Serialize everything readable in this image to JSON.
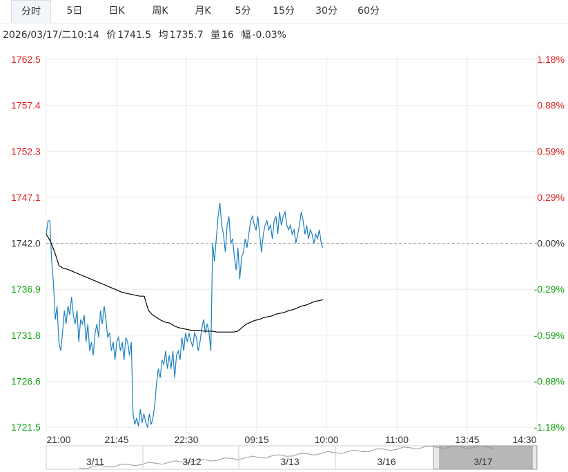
{
  "tabs": [
    {
      "label": "分时",
      "active": true
    },
    {
      "label": "5日",
      "active": false
    },
    {
      "label": "日K",
      "active": false
    },
    {
      "label": "周K",
      "active": false
    },
    {
      "label": "月K",
      "active": false
    },
    {
      "label": "5分",
      "active": false
    },
    {
      "label": "15分",
      "active": false
    },
    {
      "label": "30分",
      "active": false
    },
    {
      "label": "60分",
      "active": false
    }
  ],
  "info": {
    "datetime": "2026/03/17/二10:14",
    "price_label": "价",
    "price": "1741.5",
    "avg_label": "均",
    "avg": "1735.7",
    "vol_label": "量",
    "vol": "16",
    "chg_label": "幅",
    "chg": "-0.03%"
  },
  "colors": {
    "up": "#e02020",
    "down": "#14a014",
    "price_line": "#1a7fbf",
    "avg_line": "#000000",
    "grid": "#e8e8e8"
  },
  "chart_data": {
    "type": "line",
    "prev_close": 1742.0,
    "ylim": [
      1721.5,
      1762.5
    ],
    "y_ticks": [
      "1762.5",
      "1757.4",
      "1752.3",
      "1747.1",
      "1742.0",
      "1736.9",
      "1731.8",
      "1726.6",
      "1721.5"
    ],
    "pct_ticks": [
      "1.18%",
      "0.88%",
      "0.59%",
      "0.29%",
      "0.00%",
      "-0.29%",
      "-0.59%",
      "-0.88%",
      "-1.18%"
    ],
    "x_ticks": [
      "21:00",
      "21:45",
      "22:30",
      "09:15",
      "10:00",
      "11:00",
      "13:45",
      "14:30"
    ],
    "series": [
      {
        "name": "价",
        "values": [
          1743.0,
          1744.5,
          1744.5,
          1740.0,
          1737.5,
          1733.5,
          1735.0,
          1731.0,
          1730.0,
          1732.0,
          1734.5,
          1733.0,
          1735.0,
          1734.0,
          1736.0,
          1734.0,
          1733.0,
          1734.5,
          1731.0,
          1733.5,
          1733.0,
          1734.0,
          1731.0,
          1733.0,
          1730.0,
          1731.0,
          1729.5,
          1732.0,
          1733.0,
          1731.5,
          1734.5,
          1733.0,
          1735.0,
          1733.5,
          1731.5,
          1732.0,
          1730.0,
          1731.0,
          1729.0,
          1731.0,
          1731.5,
          1730.0,
          1731.0,
          1729.0,
          1731.5,
          1731.0,
          1729.5,
          1731.0,
          1723.0,
          1721.8,
          1722.5,
          1721.6,
          1723.5,
          1722.0,
          1723.0,
          1722.0,
          1721.5,
          1723.0,
          1721.8,
          1722.5,
          1724.0,
          1726.5,
          1728.0,
          1727.0,
          1729.0,
          1728.5,
          1730.0,
          1728.0,
          1729.5,
          1728.0,
          1730.0,
          1727.0,
          1729.5,
          1730.0,
          1729.0,
          1731.5,
          1730.0,
          1732.0,
          1731.0,
          1732.0,
          1731.0,
          1730.5,
          1732.0,
          1731.5,
          1730.0,
          1731.0,
          1732.5,
          1733.5,
          1732.0,
          1733.0,
          1732.0,
          1730.0,
          1742.0,
          1740.0,
          1742.5,
          1745.0,
          1746.5,
          1744.0,
          1743.0,
          1741.0,
          1744.0,
          1745.0,
          1742.0,
          1742.5,
          1740.5,
          1739.0,
          1741.5,
          1738.0,
          1740.5,
          1741.0,
          1742.5,
          1741.5,
          1743.0,
          1744.5,
          1745.0,
          1744.0,
          1743.5,
          1745.0,
          1743.0,
          1741.0,
          1743.0,
          1744.0,
          1744.5,
          1743.5,
          1744.0,
          1742.5,
          1744.5,
          1745.0,
          1743.0,
          1745.5,
          1744.0,
          1745.0,
          1745.5,
          1744.0,
          1743.5,
          1744.0,
          1743.0,
          1743.5,
          1742.0,
          1743.0,
          1744.0,
          1745.5,
          1744.5,
          1743.0,
          1744.0,
          1742.5,
          1743.5,
          1743.0,
          1742.0,
          1743.0,
          1742.5,
          1743.5,
          1742.0,
          1741.5
        ]
      },
      {
        "name": "均",
        "values": [
          1743.0,
          1742.2,
          1741.0,
          1739.5,
          1739.2,
          1739.1,
          1738.9,
          1738.7,
          1738.5,
          1738.3,
          1738.1,
          1737.9,
          1737.7,
          1737.5,
          1737.3,
          1737.1,
          1736.9,
          1736.7,
          1736.5,
          1736.4,
          1736.3,
          1736.2,
          1736.1,
          1736.1,
          1734.5,
          1734.0,
          1733.7,
          1733.4,
          1733.2,
          1733.1,
          1732.8,
          1732.6,
          1732.5,
          1732.4,
          1732.3,
          1732.3,
          1732.3,
          1732.2,
          1732.2,
          1732.2,
          1732.1,
          1732.1,
          1732.1,
          1732.1,
          1732.1,
          1732.2,
          1732.6,
          1733.0,
          1733.2,
          1733.4,
          1733.5,
          1733.7,
          1733.8,
          1733.9,
          1734.1,
          1734.2,
          1734.3,
          1734.5,
          1734.6,
          1734.8,
          1735.0,
          1735.1,
          1735.3,
          1735.5,
          1735.6,
          1735.7
        ]
      }
    ],
    "overview_labels": [
      "3/11",
      "3/12",
      "3/13",
      "3/16",
      "3/17"
    ]
  }
}
